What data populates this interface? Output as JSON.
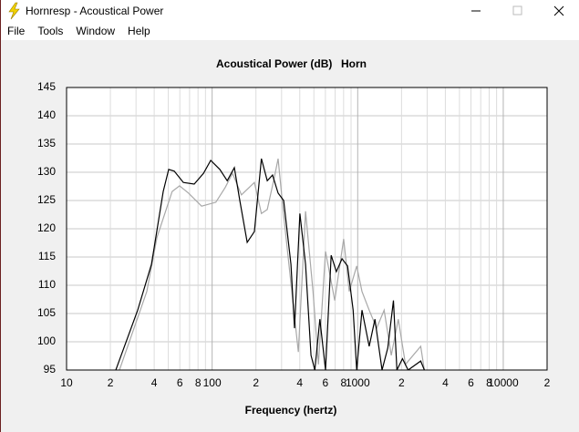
{
  "window": {
    "title": "Hornresp - Acoustical Power",
    "menu": [
      "File",
      "Tools",
      "Window",
      "Help"
    ]
  },
  "chart_data": {
    "type": "line",
    "title": "Acoustical Power (dB)",
    "subtitle": "Horn",
    "xlabel": "Frequency (hertz)",
    "xscale": "log",
    "xlim": [
      10,
      20000
    ],
    "ylim": [
      95,
      145
    ],
    "xticks": [
      10,
      {
        "value": 20,
        "label": "2"
      },
      {
        "value": 30,
        "label": null
      },
      {
        "value": 40,
        "label": "4"
      },
      {
        "value": 50,
        "label": null
      },
      {
        "value": 60,
        "label": "6"
      },
      {
        "value": 70,
        "label": null
      },
      {
        "value": 80,
        "label": "8"
      },
      {
        "value": 90,
        "label": null
      },
      100,
      {
        "value": 200,
        "label": "2"
      },
      {
        "value": 300,
        "label": null
      },
      {
        "value": 400,
        "label": "4"
      },
      {
        "value": 500,
        "label": null
      },
      {
        "value": 600,
        "label": "6"
      },
      {
        "value": 700,
        "label": null
      },
      {
        "value": 800,
        "label": "8"
      },
      {
        "value": 900,
        "label": null
      },
      1000,
      {
        "value": 2000,
        "label": "2"
      },
      {
        "value": 3000,
        "label": null
      },
      {
        "value": 4000,
        "label": "4"
      },
      {
        "value": 5000,
        "label": null
      },
      {
        "value": 6000,
        "label": "6"
      },
      {
        "value": 7000,
        "label": null
      },
      {
        "value": 8000,
        "label": "8"
      },
      {
        "value": 9000,
        "label": null
      },
      10000,
      {
        "value": 20000,
        "label": "2"
      }
    ],
    "yticks": [
      95,
      100,
      105,
      110,
      115,
      120,
      125,
      130,
      135,
      140,
      145
    ],
    "grid": true,
    "series": [
      {
        "color": "#000000",
        "x": [
          21.8,
          30.8,
          38.3,
          46.1,
          50.3,
          54.9,
          63.4,
          75.3,
          87.2,
          97.8,
          113,
          127,
          142,
          155,
          174,
          195,
          218,
          239,
          260,
          284,
          310,
          348,
          368,
          401,
          438,
          478,
          508,
          550,
          601,
          657,
          714,
          780,
          852,
          930,
          984,
          1070,
          1200,
          1313,
          1470,
          1610,
          1760,
          1860,
          2030,
          2220,
          2710,
          2870
        ],
        "values": [
          95,
          105.6,
          113.7,
          126.6,
          130.5,
          130.2,
          128.2,
          127.9,
          129.8,
          132.1,
          130.5,
          128.5,
          130.8,
          125,
          117.6,
          119.5,
          132.4,
          128.5,
          129.5,
          126.3,
          125,
          113.7,
          102.4,
          122.7,
          113.7,
          97.6,
          95,
          104,
          95,
          115.3,
          112.4,
          114.7,
          113.4,
          105.6,
          95,
          105.6,
          99.2,
          104,
          95,
          98.9,
          107.3,
          95,
          97,
          95,
          96.6,
          95
        ]
      },
      {
        "color": "#a8a8a8",
        "x": [
          23.1,
          35.6,
          41.8,
          53.1,
          59.7,
          68.9,
          84.6,
          106,
          123,
          138,
          159,
          195,
          218,
          239,
          268,
          284,
          310,
          358,
          391,
          438,
          493,
          537,
          601,
          695,
          801,
          874,
          984,
          1070,
          1200,
          1350,
          1520,
          1700,
          1900,
          2130,
          2710,
          2870
        ],
        "values": [
          95,
          108.9,
          118.5,
          126.6,
          127.6,
          126.3,
          124,
          124.7,
          127.3,
          129.8,
          126,
          128.2,
          122.7,
          123.4,
          129.2,
          132.4,
          122.4,
          107.3,
          98.2,
          123.1,
          108.9,
          96,
          116,
          107.3,
          118.2,
          108.9,
          113.4,
          108.9,
          105.6,
          102.4,
          105.6,
          97.6,
          104,
          96,
          99.2,
          95
        ]
      }
    ]
  }
}
